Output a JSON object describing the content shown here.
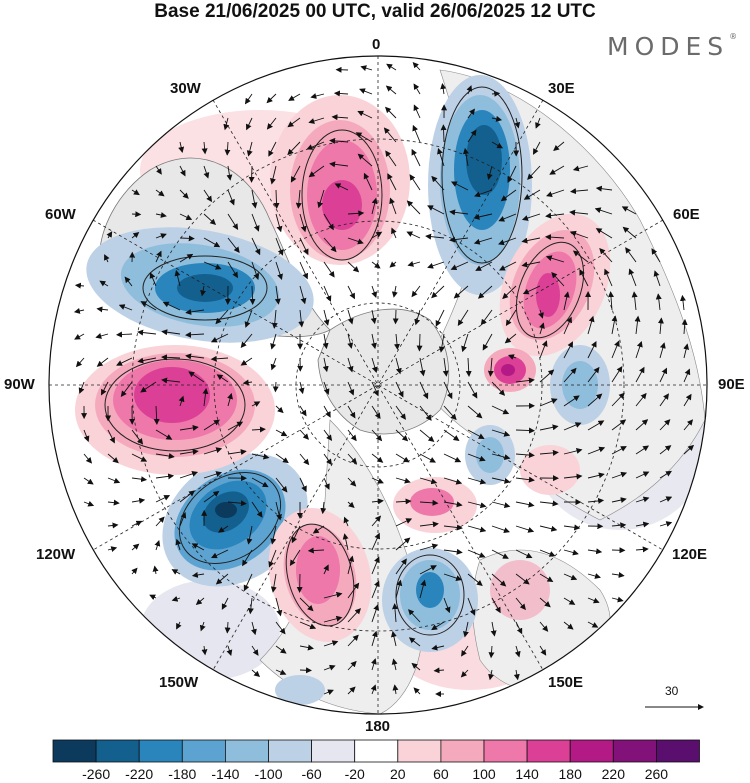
{
  "header": {
    "title": "Base 21/06/2025 00 UTC, valid 26/06/2025 12 UTC",
    "brand": "MODES",
    "brand_mark": "®"
  },
  "map": {
    "projection": "north-polar-stereographic",
    "longitude_labels": {
      "lon_0": "0",
      "lon_30e": "30E",
      "lon_60e": "60E",
      "lon_90e": "90E",
      "lon_120e": "120E",
      "lon_150e": "150E",
      "lon_180": "180",
      "lon_150w": "150W",
      "lon_120w": "120W",
      "lon_90w": "90W",
      "lon_60w": "60W",
      "lon_30w": "30W"
    },
    "reference_vector_label": "30"
  },
  "colorbar": {
    "ticks": [
      "-260",
      "-220",
      "-180",
      "-140",
      "-100",
      "-60",
      "-20",
      "20",
      "60",
      "100",
      "140",
      "180",
      "220",
      "260"
    ],
    "colors": [
      "#0b3a5c",
      "#13608f",
      "#2a85bd",
      "#5da3d1",
      "#8fbddc",
      "#bcd0e6",
      "#e6e6f0",
      "#ffffff",
      "#f9d3d8",
      "#f5a9bd",
      "#ee78aa",
      "#db4096",
      "#b41a86",
      "#82127a",
      "#5a0e6e"
    ]
  },
  "colors": {
    "land": "#e8e8e8",
    "coast": "#7a7a7a",
    "grid": "#222222"
  }
}
